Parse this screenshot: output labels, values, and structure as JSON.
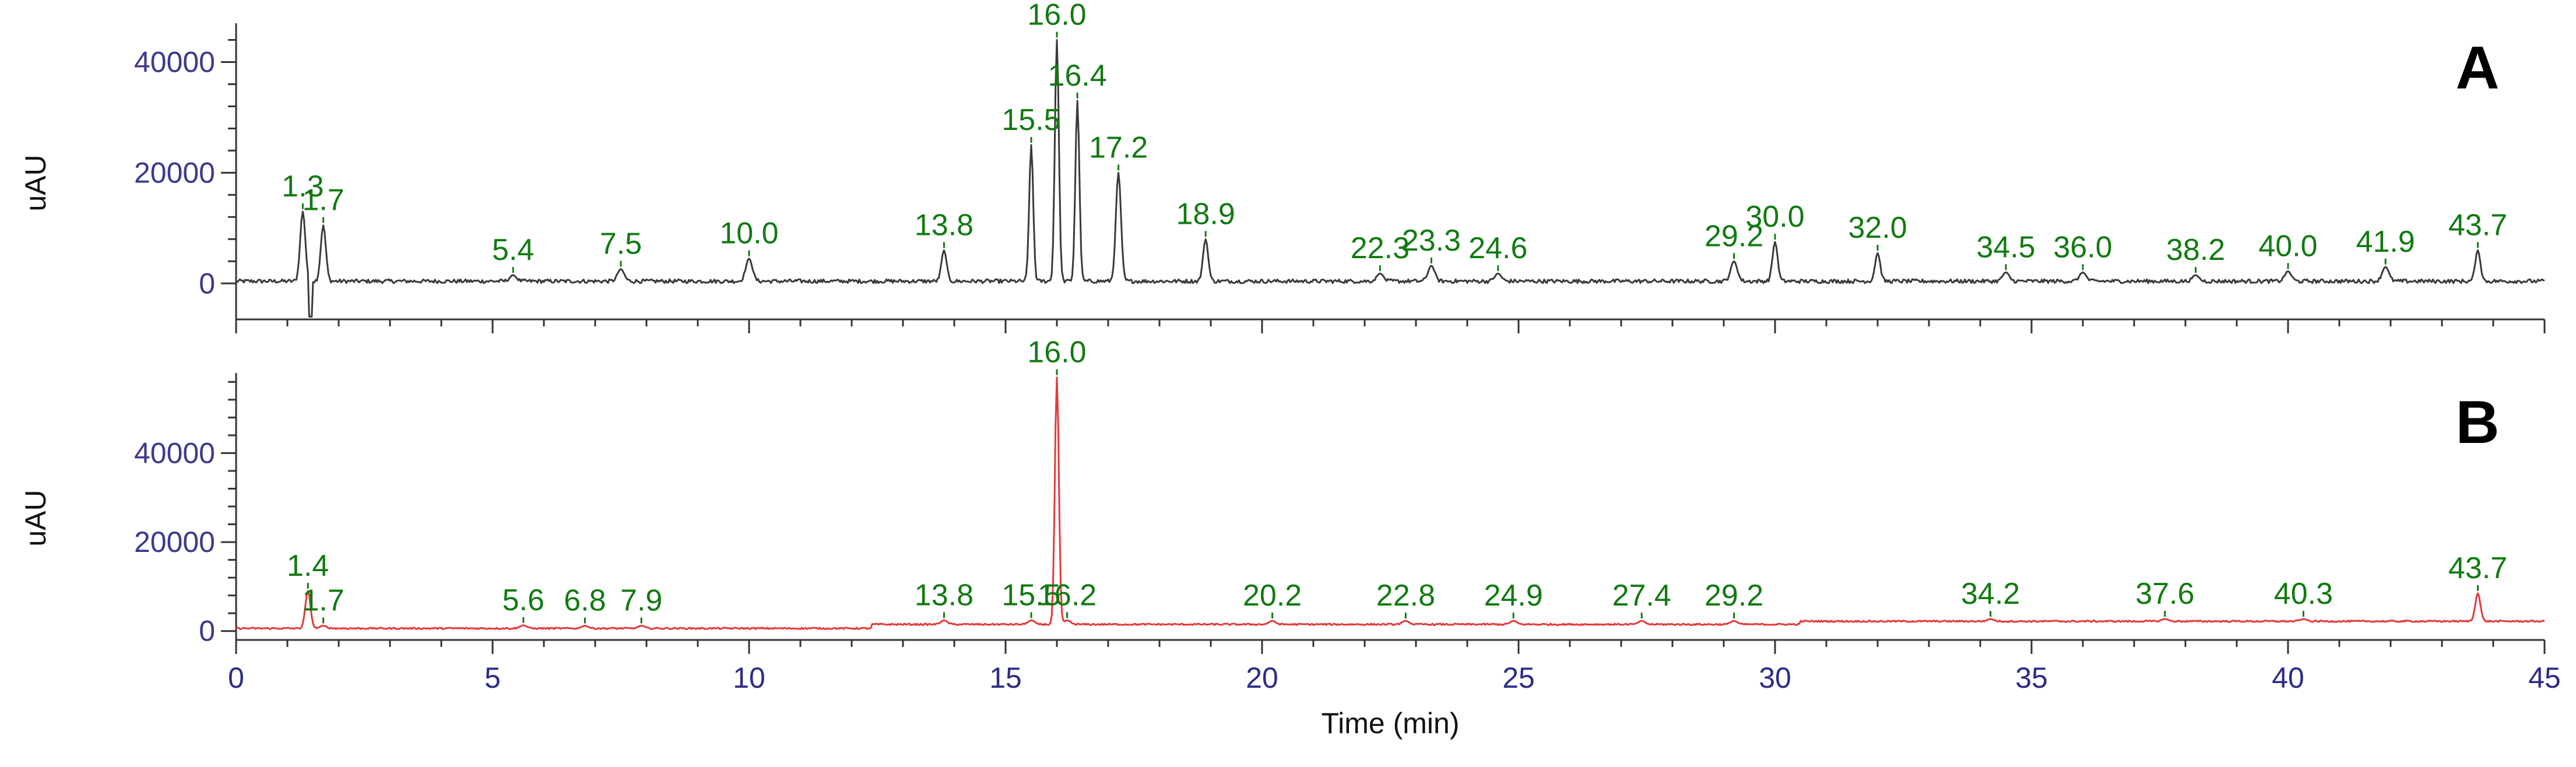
{
  "chart_data": [
    {
      "type": "line",
      "panel_letter": "A",
      "color": "#3a3a3a",
      "label_color": "#117a11",
      "xlabel": "Time (min)",
      "ylabel": "uAU",
      "xlim": [
        0,
        45
      ],
      "ylim": [
        -6500,
        47000
      ],
      "yticks": [
        0,
        20000,
        40000
      ],
      "grid": false,
      "peaks": [
        {
          "label": "1.3",
          "x": 1.3,
          "y": 13000
        },
        {
          "label": "1.7",
          "x": 1.7,
          "y": 10500
        },
        {
          "label": "5.4",
          "x": 5.4,
          "y": 1500
        },
        {
          "label": "7.5",
          "x": 7.5,
          "y": 2600
        },
        {
          "label": "10.0",
          "x": 10.0,
          "y": 4500
        },
        {
          "label": "13.8",
          "x": 13.8,
          "y": 6000
        },
        {
          "label": "15.5",
          "x": 15.5,
          "y": 25000
        },
        {
          "label": "16.0",
          "x": 16.0,
          "y": 44000
        },
        {
          "label": "16.4",
          "x": 16.4,
          "y": 33000
        },
        {
          "label": "17.2",
          "x": 17.2,
          "y": 20000
        },
        {
          "label": "18.9",
          "x": 18.9,
          "y": 8000
        },
        {
          "label": "22.3",
          "x": 22.3,
          "y": 1800
        },
        {
          "label": "23.3",
          "x": 23.3,
          "y": 3200
        },
        {
          "label": "24.6",
          "x": 24.6,
          "y": 1800
        },
        {
          "label": "29.2",
          "x": 29.2,
          "y": 4000
        },
        {
          "label": "30.0",
          "x": 30.0,
          "y": 7500
        },
        {
          "label": "32.0",
          "x": 32.0,
          "y": 5500
        },
        {
          "label": "34.5",
          "x": 34.5,
          "y": 2000
        },
        {
          "label": "36.0",
          "x": 36.0,
          "y": 2000
        },
        {
          "label": "38.2",
          "x": 38.2,
          "y": 1500
        },
        {
          "label": "40.0",
          "x": 40.0,
          "y": 2200
        },
        {
          "label": "41.9",
          "x": 41.9,
          "y": 3000
        },
        {
          "label": "43.7",
          "x": 43.7,
          "y": 6000
        }
      ]
    },
    {
      "type": "line",
      "panel_letter": "B",
      "color": "#e23a3a",
      "label_color": "#117a11",
      "xlabel": "Time (min)",
      "ylabel": "uAU",
      "xlim": [
        0,
        45
      ],
      "ylim": [
        -2000,
        58000
      ],
      "yticks": [
        0,
        20000,
        40000
      ],
      "xticks": [
        0,
        5,
        10,
        15,
        20,
        25,
        30,
        35,
        40,
        45
      ],
      "grid": false,
      "peaks": [
        {
          "label": "1.4",
          "x": 1.4,
          "y": 9000
        },
        {
          "label": "1.7",
          "x": 1.7,
          "y": 1200
        },
        {
          "label": "5.6",
          "x": 5.6,
          "y": 1300
        },
        {
          "label": "6.8",
          "x": 6.8,
          "y": 1200
        },
        {
          "label": "7.9",
          "x": 7.9,
          "y": 1200
        },
        {
          "label": "13.8",
          "x": 13.8,
          "y": 2400
        },
        {
          "label": "15.5",
          "x": 15.5,
          "y": 2400
        },
        {
          "label": "16.0",
          "x": 16.0,
          "y": 57000
        },
        {
          "label": "16.2",
          "x": 16.2,
          "y": 2400
        },
        {
          "label": "20.2",
          "x": 20.2,
          "y": 2300
        },
        {
          "label": "22.8",
          "x": 22.8,
          "y": 2300
        },
        {
          "label": "24.9",
          "x": 24.9,
          "y": 2300
        },
        {
          "label": "27.4",
          "x": 27.4,
          "y": 2300
        },
        {
          "label": "29.2",
          "x": 29.2,
          "y": 2300
        },
        {
          "label": "34.2",
          "x": 34.2,
          "y": 2700
        },
        {
          "label": "37.6",
          "x": 37.6,
          "y": 2700
        },
        {
          "label": "40.3",
          "x": 40.3,
          "y": 2700
        },
        {
          "label": "43.7",
          "x": 43.7,
          "y": 8500
        }
      ]
    }
  ]
}
